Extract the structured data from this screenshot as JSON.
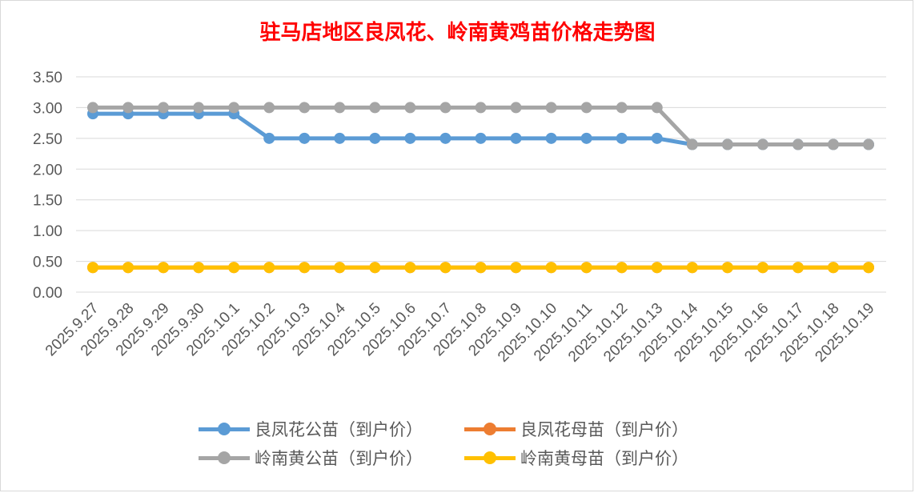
{
  "chart_data": {
    "type": "line",
    "title": "驻马店地区良凤花、岭南黄鸡苗价格走势图",
    "xlabel": "",
    "ylabel": "",
    "ylim": [
      0,
      3.5
    ],
    "yticks": [
      "0.00",
      "0.50",
      "1.00",
      "1.50",
      "2.00",
      "2.50",
      "3.00",
      "3.50"
    ],
    "grid": true,
    "legend_position": "bottom",
    "categories": [
      "2025.9.27",
      "2025.9.28",
      "2025.9.29",
      "2025.9.30",
      "2025.10.1",
      "2025.10.2",
      "2025.10.3",
      "2025.10.4",
      "2025.10.5",
      "2025.10.6",
      "2025.10.7",
      "2025.10.8",
      "2025.10.9",
      "2025.10.10",
      "2025.10.11",
      "2025.10.12",
      "2025.10.13",
      "2025.10.14",
      "2025.10.15",
      "2025.10.16",
      "2025.10.17",
      "2025.10.18",
      "2025.10.19"
    ],
    "series": [
      {
        "name": "良凤花公苗（到户价）",
        "color": "#5b9bd5",
        "values": [
          2.9,
          2.9,
          2.9,
          2.9,
          2.9,
          2.5,
          2.5,
          2.5,
          2.5,
          2.5,
          2.5,
          2.5,
          2.5,
          2.5,
          2.5,
          2.5,
          2.5,
          2.4,
          2.4,
          2.4,
          2.4,
          2.4,
          2.4
        ]
      },
      {
        "name": "良凤花母苗（到户价）",
        "color": "#ed7d31",
        "values": [
          0.4,
          0.4,
          0.4,
          0.4,
          0.4,
          0.4,
          0.4,
          0.4,
          0.4,
          0.4,
          0.4,
          0.4,
          0.4,
          0.4,
          0.4,
          0.4,
          0.4,
          0.4,
          0.4,
          0.4,
          0.4,
          0.4,
          0.4
        ]
      },
      {
        "name": "岭南黄公苗（到户价）",
        "color": "#a5a5a5",
        "values": [
          3.0,
          3.0,
          3.0,
          3.0,
          3.0,
          3.0,
          3.0,
          3.0,
          3.0,
          3.0,
          3.0,
          3.0,
          3.0,
          3.0,
          3.0,
          3.0,
          3.0,
          2.4,
          2.4,
          2.4,
          2.4,
          2.4,
          2.4
        ]
      },
      {
        "name": "岭南黄母苗（到户价）",
        "color": "#ffc000",
        "values": [
          0.4,
          0.4,
          0.4,
          0.4,
          0.4,
          0.4,
          0.4,
          0.4,
          0.4,
          0.4,
          0.4,
          0.4,
          0.4,
          0.4,
          0.4,
          0.4,
          0.4,
          0.4,
          0.4,
          0.4,
          0.4,
          0.4,
          0.4
        ]
      }
    ]
  },
  "colors": {
    "title": "#ff0000",
    "grid": "#d9d9d9",
    "text": "#595959"
  }
}
